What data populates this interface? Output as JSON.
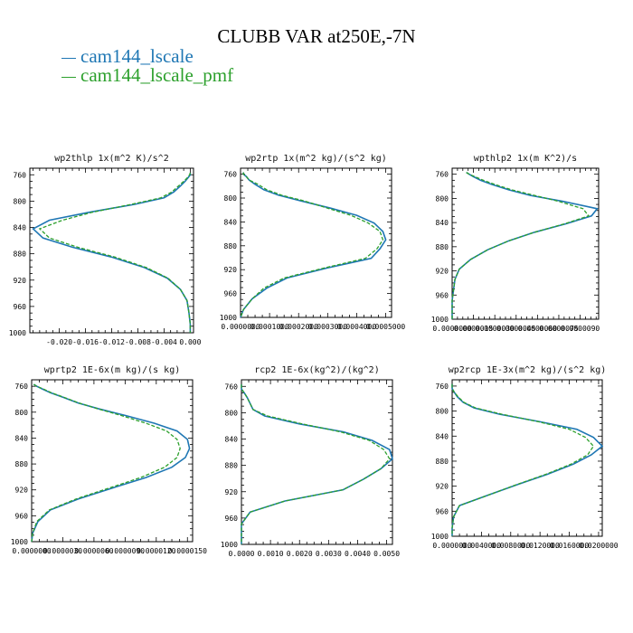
{
  "title": "CLUBB VAR at250E,-7N",
  "legend": [
    {
      "label": "cam144_lscale",
      "color": "#1f77b4"
    },
    {
      "label": "cam144_lscale_pmf",
      "color": "#2ca02c"
    }
  ],
  "chart_data": [
    {
      "type": "line",
      "title": "wp2thlp   1x(m^2 K)/s^2",
      "ylim": [
        1000,
        750
      ],
      "xlim": [
        -0.0245,
        0.0005
      ],
      "yticks": [
        760,
        800,
        840,
        880,
        920,
        960,
        1000
      ],
      "xticks": [
        -0.02,
        -0.016,
        -0.012,
        -0.008,
        -0.004,
        0.0
      ],
      "xtick_labels": [
        "-0.020",
        "-0.016",
        "-0.012",
        "-0.008",
        "-0.004",
        "0.000"
      ],
      "levels": [
        757,
        760,
        764,
        770,
        777,
        786,
        795,
        805,
        817,
        829,
        842,
        856,
        870,
        885,
        901,
        917,
        934,
        951,
        969,
        987,
        1000
      ],
      "series": [
        {
          "name": "cam144_lscale",
          "x": [
            0.0,
            0.0,
            -0.0003,
            -0.0008,
            -0.0015,
            -0.0025,
            -0.004,
            -0.0085,
            -0.0155,
            -0.0215,
            -0.024,
            -0.0225,
            -0.018,
            -0.012,
            -0.007,
            -0.0035,
            -0.0015,
            -0.0005,
            -0.0002,
            0.0,
            0.0
          ]
        },
        {
          "name": "cam144_lscale_pmf",
          "x": [
            0.0,
            -0.0001,
            -0.0004,
            -0.001,
            -0.0018,
            -0.0028,
            -0.0045,
            -0.009,
            -0.015,
            -0.0195,
            -0.023,
            -0.0215,
            -0.0172,
            -0.0115,
            -0.0067,
            -0.0034,
            -0.0015,
            -0.0005,
            -0.0002,
            0.0,
            0.0
          ]
        }
      ]
    },
    {
      "type": "line",
      "title": "wp2rtp   1x(m^2 kg)/(s^2 kg)",
      "ylim": [
        1000,
        750
      ],
      "xlim": [
        0.0,
        0.00052
      ],
      "yticks": [
        760,
        800,
        840,
        880,
        920,
        960,
        1000
      ],
      "xticks": [
        0.0,
        0.0001,
        0.0002,
        0.0003,
        0.0004,
        0.0005
      ],
      "xtick_labels": [
        "0.0000000",
        "0.0001000",
        "0.0002000",
        "0.0003000",
        "0.0004000",
        "0.0005000"
      ],
      "levels": [
        757,
        760,
        764,
        770,
        777,
        786,
        795,
        805,
        817,
        829,
        842,
        856,
        870,
        885,
        901,
        917,
        934,
        951,
        969,
        987,
        1000
      ],
      "series": [
        {
          "name": "cam144_lscale",
          "x": [
            1e-05,
            1e-05,
            2e-05,
            3e-05,
            5e-05,
            8e-05,
            0.00013,
            0.00021,
            0.00031,
            0.0004,
            0.00046,
            0.00049,
            0.0005,
            0.00048,
            0.00045,
            0.0003,
            0.00016,
            9e-05,
            4e-05,
            1e-05,
            0.0
          ]
        },
        {
          "name": "cam144_lscale_pmf",
          "x": [
            1e-05,
            1e-05,
            2e-05,
            3e-05,
            6e-05,
            9e-05,
            0.00014,
            0.00022,
            0.0003,
            0.00038,
            0.00044,
            0.00048,
            0.00049,
            0.00047,
            0.00043,
            0.00029,
            0.00015,
            8e-05,
            4e-05,
            1e-05,
            0.0
          ]
        }
      ]
    },
    {
      "type": "line",
      "title": "wpthlp2   1x(m K^2)/s",
      "ylim": [
        1000,
        750
      ],
      "xlim": [
        0.0,
        1.03e-05
      ],
      "yticks": [
        760,
        800,
        840,
        880,
        920,
        960,
        1000
      ],
      "xticks": [
        0.0,
        1.5e-06,
        3e-06,
        4.5e-06,
        6e-06,
        7.5e-06,
        9e-06,
        1.05e-05
      ],
      "xtick_labels": [
        "0.0000000",
        "0.0000015",
        "0.0000030",
        "0.0000045",
        "0.0000060",
        "0.0000075",
        "0.0000090",
        "0.0000105"
      ],
      "levels": [
        757,
        760,
        764,
        770,
        777,
        786,
        795,
        805,
        817,
        829,
        842,
        856,
        870,
        885,
        901,
        917,
        934,
        951,
        969,
        987,
        1000
      ],
      "series": [
        {
          "name": "cam144_lscale",
          "x": [
            1e-06,
            1.2e-06,
            1.5e-06,
            2e-06,
            2.8e-06,
            4e-06,
            5.5e-06,
            7.8e-06,
            1.02e-05,
            9.8e-06,
            8e-06,
            5.8e-06,
            4e-06,
            2.5e-06,
            1.3e-06,
            5e-07,
            2e-07,
            1e-07,
            0.0,
            0.0,
            0.0
          ]
        },
        {
          "name": "cam144_lscale_pmf",
          "x": [
            1e-06,
            1.2e-06,
            1.6e-06,
            2.2e-06,
            3e-06,
            4.2e-06,
            5.8e-06,
            7.5e-06,
            9.2e-06,
            9.6e-06,
            7.9e-06,
            5.8e-06,
            4e-06,
            2.5e-06,
            1.3e-06,
            5e-07,
            2e-07,
            1e-07,
            0.0,
            0.0,
            0.0
          ]
        }
      ]
    },
    {
      "type": "line",
      "title": "wprtp2   1E-6x(m kg)/(s kg)",
      "ylim": [
        1000,
        750
      ],
      "xlim": [
        0.0,
        1.55e-05
      ],
      "yticks": [
        760,
        800,
        840,
        880,
        920,
        960,
        1000
      ],
      "xticks": [
        0.0,
        3e-06,
        6e-06,
        9e-06,
        1.2e-05,
        1.5e-05
      ],
      "xtick_labels": [
        "0.0000000",
        "0.0000030",
        "0.0000060",
        "0.0000090",
        "0.0000120",
        "0.0000150"
      ],
      "levels": [
        757,
        760,
        764,
        770,
        777,
        786,
        795,
        805,
        817,
        829,
        842,
        856,
        870,
        885,
        901,
        917,
        934,
        951,
        969,
        987,
        1000
      ],
      "series": [
        {
          "name": "cam144_lscale",
          "x": [
            2e-07,
            5e-07,
            1e-06,
            1.8e-06,
            3e-06,
            4.5e-06,
            6.5e-06,
            9e-06,
            1.18e-05,
            1.4e-05,
            1.5e-05,
            1.52e-05,
            1.48e-05,
            1.35e-05,
            1.1e-05,
            7.8e-06,
            4.5e-06,
            1.8e-06,
            6e-07,
            1e-07,
            0.0
          ]
        },
        {
          "name": "cam144_lscale_pmf",
          "x": [
            2e-07,
            5e-07,
            1.1e-06,
            1.9e-06,
            3.1e-06,
            4.6e-06,
            6.4e-06,
            8.6e-06,
            1.1e-05,
            1.3e-05,
            1.4e-05,
            1.43e-05,
            1.4e-05,
            1.28e-05,
            1.05e-05,
            7.5e-06,
            4.3e-06,
            1.7e-06,
            5e-07,
            1e-07,
            0.0
          ]
        }
      ]
    },
    {
      "type": "line",
      "title": "rcp2   1E-6x(kg^2)/(kg^2)",
      "ylim": [
        1000,
        750
      ],
      "xlim": [
        0.0,
        0.0052
      ],
      "yticks": [
        760,
        800,
        840,
        880,
        920,
        960,
        1000
      ],
      "xticks": [
        0.0,
        0.001,
        0.002,
        0.003,
        0.004,
        0.005
      ],
      "xtick_labels": [
        "0.0000",
        "0.0010",
        "0.0020",
        "0.0030",
        "0.0040",
        "0.0050"
      ],
      "levels": [
        757,
        760,
        764,
        770,
        777,
        786,
        795,
        805,
        817,
        829,
        842,
        856,
        870,
        885,
        901,
        917,
        934,
        951,
        969,
        987,
        1000
      ],
      "series": [
        {
          "name": "cam144_lscale",
          "x": [
            0.0,
            0.0,
            0.0,
            0.0001,
            0.0002,
            0.0003,
            0.0004,
            0.0008,
            0.002,
            0.0035,
            0.0045,
            0.0051,
            0.0052,
            0.0048,
            0.0042,
            0.0035,
            0.0015,
            0.0003,
            0.0,
            0.0,
            0.0
          ]
        },
        {
          "name": "cam144_lscale_pmf",
          "x": [
            0.0,
            0.0,
            0.0,
            0.0001,
            0.0002,
            0.0003,
            0.0004,
            0.0009,
            0.0021,
            0.0034,
            0.0044,
            0.0049,
            0.0051,
            0.0048,
            0.0042,
            0.0035,
            0.0015,
            0.0003,
            0.0,
            0.0,
            0.0
          ]
        }
      ]
    },
    {
      "type": "line",
      "title": "wp2rcp   1E-3x(m^2 kg)/(s^2 kg)",
      "ylim": [
        1000,
        750
      ],
      "xlim": [
        0.0,
        0.0205
      ],
      "yticks": [
        760,
        800,
        840,
        880,
        920,
        960,
        1000
      ],
      "xticks": [
        0.0,
        0.004,
        0.008,
        0.012,
        0.016,
        0.02
      ],
      "xtick_labels": [
        "0.0000000",
        "0.0040000",
        "0.0080000",
        "0.0120000",
        "0.0160000",
        "0.0200000"
      ],
      "levels": [
        757,
        760,
        764,
        770,
        777,
        786,
        795,
        805,
        817,
        829,
        842,
        856,
        870,
        885,
        901,
        917,
        934,
        951,
        969,
        987,
        1000
      ],
      "series": [
        {
          "name": "cam144_lscale",
          "x": [
            0.0,
            0.0,
            0.0,
            0.0003,
            0.0007,
            0.0015,
            0.003,
            0.0065,
            0.012,
            0.017,
            0.0193,
            0.0205,
            0.019,
            0.0165,
            0.013,
            0.009,
            0.005,
            0.001,
            0.0002,
            0.0,
            0.0
          ]
        },
        {
          "name": "cam144_lscale_pmf",
          "x": [
            0.0,
            0.0,
            0.0,
            0.0003,
            0.0008,
            0.0016,
            0.0032,
            0.0068,
            0.0118,
            0.016,
            0.0182,
            0.0193,
            0.0185,
            0.0162,
            0.0128,
            0.0089,
            0.005,
            0.001,
            0.0002,
            0.0,
            0.0
          ]
        }
      ]
    }
  ]
}
